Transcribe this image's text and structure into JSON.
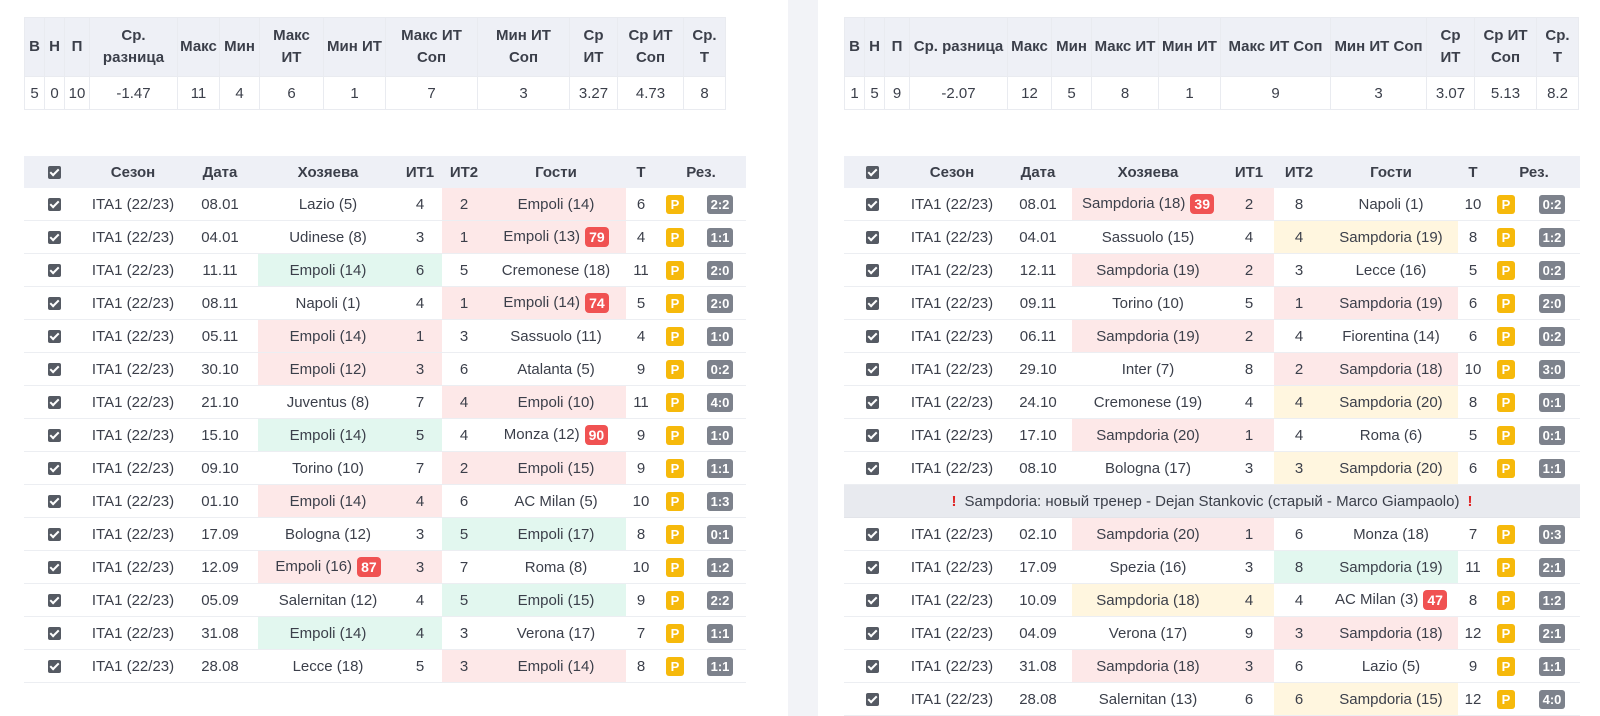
{
  "stats_headers": [
    "В",
    "Н",
    "П",
    "Ср. разница",
    "Макс",
    "Мин",
    "Макс ИТ",
    "Мин ИТ",
    "Макс ИТ Соп",
    "Мин ИТ Соп",
    "Ср ИТ",
    "Ср ИТ Соп",
    "Ср. Т"
  ],
  "match_headers": [
    "Сезон",
    "Дата",
    "Хозяева",
    "ИТ1",
    "ИТ2",
    "Гости",
    "Т",
    "Рез."
  ],
  "p_label": "P",
  "colors": {
    "red_cell": "#fde8e8",
    "green_cell": "#e2f7ef",
    "yellow_cell": "#fff6df",
    "badge": "#f05252",
    "p_badge": "#f6b90b",
    "result": "#7d828c"
  },
  "left": {
    "stats": [
      "5",
      "0",
      "10",
      "-1.47",
      "11",
      "4",
      "6",
      "1",
      "7",
      "3",
      "3.27",
      "4.73",
      "8"
    ],
    "matches": [
      {
        "season": "ITA1 (22/23)",
        "date": "08.01",
        "home": "Lazio (5)",
        "it1": "4",
        "it2": "2",
        "away": "Empoli (14)",
        "t": "6",
        "res": "2:2",
        "hl": "away",
        "hc": "red"
      },
      {
        "season": "ITA1 (22/23)",
        "date": "04.01",
        "home": "Udinese (8)",
        "it1": "3",
        "it2": "1",
        "away": "Empoli (13)",
        "away_badge": "79",
        "t": "4",
        "res": "1:1",
        "hl": "away",
        "hc": "red"
      },
      {
        "season": "ITA1 (22/23)",
        "date": "11.11",
        "home": "Empoli (14)",
        "it1": "6",
        "it2": "5",
        "away": "Cremonese (18)",
        "t": "11",
        "res": "2:0",
        "hl": "home",
        "hc": "green"
      },
      {
        "season": "ITA1 (22/23)",
        "date": "08.11",
        "home": "Napoli (1)",
        "it1": "4",
        "it2": "1",
        "away": "Empoli (14)",
        "away_badge": "74",
        "t": "5",
        "res": "2:0",
        "hl": "away",
        "hc": "red"
      },
      {
        "season": "ITA1 (22/23)",
        "date": "05.11",
        "home": "Empoli (14)",
        "it1": "1",
        "it2": "3",
        "away": "Sassuolo (11)",
        "t": "4",
        "res": "1:0",
        "hl": "home",
        "hc": "red"
      },
      {
        "season": "ITA1 (22/23)",
        "date": "30.10",
        "home": "Empoli (12)",
        "it1": "3",
        "it2": "6",
        "away": "Atalanta (5)",
        "t": "9",
        "res": "0:2",
        "hl": "home",
        "hc": "red"
      },
      {
        "season": "ITA1 (22/23)",
        "date": "21.10",
        "home": "Juventus (8)",
        "it1": "7",
        "it2": "4",
        "away": "Empoli (10)",
        "t": "11",
        "res": "4:0",
        "hl": "away",
        "hc": "red"
      },
      {
        "season": "ITA1 (22/23)",
        "date": "15.10",
        "home": "Empoli (14)",
        "it1": "5",
        "it2": "4",
        "away": "Monza (12)",
        "away_badge": "90",
        "t": "9",
        "res": "1:0",
        "hl": "home",
        "hc": "green"
      },
      {
        "season": "ITA1 (22/23)",
        "date": "09.10",
        "home": "Torino (10)",
        "it1": "7",
        "it2": "2",
        "away": "Empoli (15)",
        "t": "9",
        "res": "1:1",
        "hl": "away",
        "hc": "red"
      },
      {
        "season": "ITA1 (22/23)",
        "date": "01.10",
        "home": "Empoli (14)",
        "it1": "4",
        "it2": "6",
        "away": "AC Milan (5)",
        "t": "10",
        "res": "1:3",
        "hl": "home",
        "hc": "red"
      },
      {
        "season": "ITA1 (22/23)",
        "date": "17.09",
        "home": "Bologna (12)",
        "it1": "3",
        "it2": "5",
        "away": "Empoli (17)",
        "t": "8",
        "res": "0:1",
        "hl": "away",
        "hc": "green"
      },
      {
        "season": "ITA1 (22/23)",
        "date": "12.09",
        "home": "Empoli (16)",
        "home_badge": "87",
        "it1": "3",
        "it2": "7",
        "away": "Roma (8)",
        "t": "10",
        "res": "1:2",
        "hl": "home",
        "hc": "red"
      },
      {
        "season": "ITA1 (22/23)",
        "date": "05.09",
        "home": "Salernitan (12)",
        "it1": "4",
        "it2": "5",
        "away": "Empoli (15)",
        "t": "9",
        "res": "2:2",
        "hl": "away",
        "hc": "green"
      },
      {
        "season": "ITA1 (22/23)",
        "date": "31.08",
        "home": "Empoli (14)",
        "it1": "4",
        "it2": "3",
        "away": "Verona (17)",
        "t": "7",
        "res": "1:1",
        "hl": "home",
        "hc": "green"
      },
      {
        "season": "ITA1 (22/23)",
        "date": "28.08",
        "home": "Lecce (18)",
        "it1": "5",
        "it2": "3",
        "away": "Empoli (14)",
        "t": "8",
        "res": "1:1",
        "hl": "away",
        "hc": "red"
      }
    ]
  },
  "right": {
    "stats": [
      "1",
      "5",
      "9",
      "-2.07",
      "12",
      "5",
      "8",
      "1",
      "9",
      "3",
      "3.07",
      "5.13",
      "8.2"
    ],
    "notice": "Sampdoria: новый тренер - Dejan Stankovic (старый - Marco Giampaolo)",
    "notice_mark": "!",
    "matches_before": [
      {
        "season": "ITA1 (22/23)",
        "date": "08.01",
        "home": "Sampdoria (18)",
        "home_badge": "39",
        "it1": "2",
        "it2": "8",
        "away": "Napoli (1)",
        "t": "10",
        "res": "0:2",
        "hl": "home",
        "hc": "red"
      },
      {
        "season": "ITA1 (22/23)",
        "date": "04.01",
        "home": "Sassuolo (15)",
        "it1": "4",
        "it2": "4",
        "away": "Sampdoria (19)",
        "t": "8",
        "res": "1:2",
        "hl": "away",
        "hc": "yellow"
      },
      {
        "season": "ITA1 (22/23)",
        "date": "12.11",
        "home": "Sampdoria (19)",
        "it1": "2",
        "it2": "3",
        "away": "Lecce (16)",
        "t": "5",
        "res": "0:2",
        "hl": "home",
        "hc": "red"
      },
      {
        "season": "ITA1 (22/23)",
        "date": "09.11",
        "home": "Torino (10)",
        "it1": "5",
        "it2": "1",
        "away": "Sampdoria (19)",
        "t": "6",
        "res": "2:0",
        "hl": "away",
        "hc": "red"
      },
      {
        "season": "ITA1 (22/23)",
        "date": "06.11",
        "home": "Sampdoria (19)",
        "it1": "2",
        "it2": "4",
        "away": "Fiorentina (14)",
        "t": "6",
        "res": "0:2",
        "hl": "home",
        "hc": "red"
      },
      {
        "season": "ITA1 (22/23)",
        "date": "29.10",
        "home": "Inter (7)",
        "it1": "8",
        "it2": "2",
        "away": "Sampdoria (18)",
        "t": "10",
        "res": "3:0",
        "hl": "away",
        "hc": "red"
      },
      {
        "season": "ITA1 (22/23)",
        "date": "24.10",
        "home": "Cremonese (19)",
        "it1": "4",
        "it2": "4",
        "away": "Sampdoria (20)",
        "t": "8",
        "res": "0:1",
        "hl": "away",
        "hc": "yellow"
      },
      {
        "season": "ITA1 (22/23)",
        "date": "17.10",
        "home": "Sampdoria (20)",
        "it1": "1",
        "it2": "4",
        "away": "Roma (6)",
        "t": "5",
        "res": "0:1",
        "hl": "home",
        "hc": "red"
      },
      {
        "season": "ITA1 (22/23)",
        "date": "08.10",
        "home": "Bologna (17)",
        "it1": "3",
        "it2": "3",
        "away": "Sampdoria (20)",
        "t": "6",
        "res": "1:1",
        "hl": "away",
        "hc": "yellow"
      }
    ],
    "matches_after": [
      {
        "season": "ITA1 (22/23)",
        "date": "02.10",
        "home": "Sampdoria (20)",
        "it1": "1",
        "it2": "6",
        "away": "Monza (18)",
        "t": "7",
        "res": "0:3",
        "hl": "home",
        "hc": "red"
      },
      {
        "season": "ITA1 (22/23)",
        "date": "17.09",
        "home": "Spezia (16)",
        "it1": "3",
        "it2": "8",
        "away": "Sampdoria (19)",
        "t": "11",
        "res": "2:1",
        "hl": "away",
        "hc": "green"
      },
      {
        "season": "ITA1 (22/23)",
        "date": "10.09",
        "home": "Sampdoria (18)",
        "it1": "4",
        "it2": "4",
        "away": "AC Milan (3)",
        "away_badge": "47",
        "t": "8",
        "res": "1:2",
        "hl": "home",
        "hc": "yellow"
      },
      {
        "season": "ITA1 (22/23)",
        "date": "04.09",
        "home": "Verona (17)",
        "it1": "9",
        "it2": "3",
        "away": "Sampdoria (18)",
        "t": "12",
        "res": "2:1",
        "hl": "away",
        "hc": "red"
      },
      {
        "season": "ITA1 (22/23)",
        "date": "31.08",
        "home": "Sampdoria (18)",
        "it1": "3",
        "it2": "6",
        "away": "Lazio (5)",
        "t": "9",
        "res": "1:1",
        "hl": "home",
        "hc": "red"
      },
      {
        "season": "ITA1 (22/23)",
        "date": "28.08",
        "home": "Salernitan (13)",
        "it1": "6",
        "it2": "6",
        "away": "Sampdoria (15)",
        "t": "12",
        "res": "4:0",
        "hl": "away",
        "hc": "yellow"
      }
    ]
  }
}
